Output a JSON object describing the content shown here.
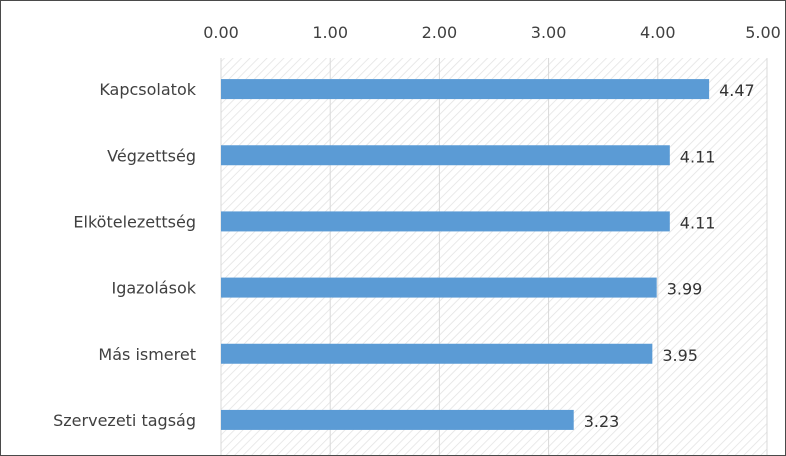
{
  "chart_data": {
    "type": "bar",
    "orientation": "horizontal",
    "title": "",
    "xlabel": "",
    "ylabel": "",
    "categories": [
      "Kapcsolatok",
      "Végzettség",
      "Elkötelezettség",
      "Igazolások",
      "Más ismeret",
      "Szervezeti tagság"
    ],
    "values": [
      4.47,
      4.11,
      4.11,
      3.99,
      3.95,
      3.23
    ],
    "value_labels": [
      "4.47",
      "4.11",
      "4.11",
      "3.99",
      "3.95",
      "3.23"
    ],
    "axis_ticks": [
      "0.00",
      "1.00",
      "2.00",
      "3.00",
      "4.00",
      "5.00"
    ],
    "xlim": [
      0,
      5
    ],
    "value_axis_position": "top",
    "grid": true,
    "legend": "none",
    "bar_color": "#5b9bd5",
    "gridline_color": "#d9d9d9",
    "plot_pattern": "diagonal-hatch"
  }
}
